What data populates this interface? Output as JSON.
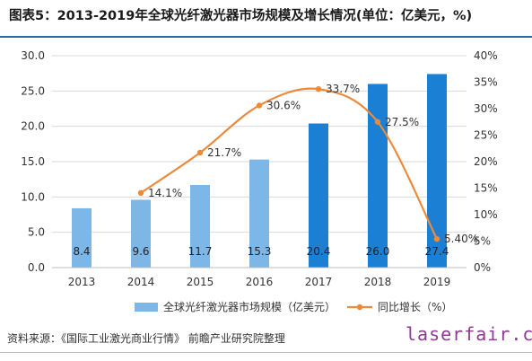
{
  "title": "图表5：2013-2019年全球光纤激光器市场规模及增长情况(单位：亿美元，%)",
  "source": "资料来源：《国际工业激光商业行情》 前瞻产业研究院整理",
  "watermark": "laserfair.com",
  "colors": {
    "bar_light": "#7db7e8",
    "bar_dark": "#1b7fd4",
    "line": "#ed8a3a",
    "title_rule": "#2b6aa8",
    "grid": "#d9d9d9"
  },
  "chart_data": {
    "type": "bar",
    "title": "",
    "categories": [
      "2013",
      "2014",
      "2015",
      "2016",
      "2017",
      "2018",
      "2019"
    ],
    "series": [
      {
        "name": "全球光纤激光器市场规模（亿美元）",
        "type": "bar",
        "axis": "left",
        "values": [
          8.4,
          9.6,
          11.7,
          15.3,
          20.4,
          26.0,
          27.4
        ],
        "labels": [
          "8.4",
          "9.6",
          "11.7",
          "15.3",
          "20.4",
          "26.0",
          "27.4"
        ]
      },
      {
        "name": "同比增长（%）",
        "type": "line",
        "axis": "right",
        "values": [
          null,
          14.1,
          21.7,
          30.6,
          33.7,
          27.5,
          5.4
        ],
        "labels": [
          "",
          "14.1%",
          "21.7%",
          "30.6%",
          "33.7%",
          "27.5%",
          "5.40%"
        ]
      }
    ],
    "y_left": {
      "min": 0,
      "max": 30,
      "step": 5,
      "ticks": [
        "0.0",
        "5.0",
        "10.0",
        "15.0",
        "20.0",
        "25.0",
        "30.0"
      ]
    },
    "y_right": {
      "min": 0,
      "max": 40,
      "step": 5,
      "ticks": [
        "0%",
        "5%",
        "10%",
        "15%",
        "20%",
        "25%",
        "30%",
        "35%",
        "40%"
      ]
    },
    "grid": true,
    "legend": "bottom"
  }
}
